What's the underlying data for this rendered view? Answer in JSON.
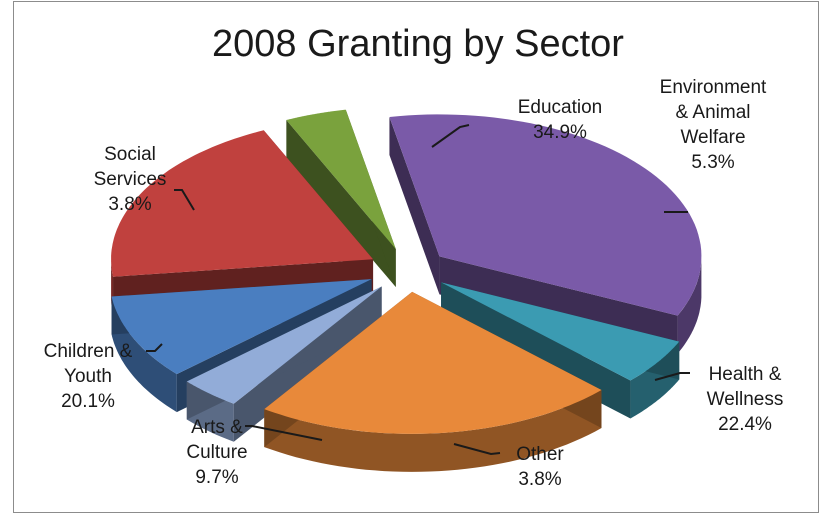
{
  "chart_data": {
    "type": "pie",
    "title": "2008 Granting by Sector",
    "unit": "%",
    "slices": [
      {
        "label": "Education",
        "value": 34.9,
        "value_label": "34.9%",
        "color": "#7a5aa8",
        "label_lines": [
          "Education",
          "34.9%"
        ]
      },
      {
        "label": "Environment & Animal Welfare",
        "value": 5.3,
        "value_label": "5.3%",
        "color": "#3b9bb2",
        "label_lines": [
          "Environment",
          "& Animal",
          "Welfare",
          "5.3%"
        ]
      },
      {
        "label": "Health & Wellness",
        "value": 22.4,
        "value_label": "22.4%",
        "color": "#e8893a",
        "label_lines": [
          "Health &",
          "Wellness",
          "22.4%"
        ]
      },
      {
        "label": "Other",
        "value": 3.8,
        "value_label": "3.8%",
        "color": "#92acd8",
        "label_lines": [
          "Other",
          "3.8%"
        ]
      },
      {
        "label": "Arts & Culture",
        "value": 9.7,
        "value_label": "9.7%",
        "color": "#4a7ec0",
        "label_lines": [
          "Arts &",
          "Culture",
          "9.7%"
        ]
      },
      {
        "label": "Children & Youth",
        "value": 20.1,
        "value_label": "20.1%",
        "color": "#c0413e",
        "label_lines": [
          "Children &",
          "Youth",
          "20.1%"
        ]
      },
      {
        "label": "Social Services",
        "value": 3.8,
        "value_label": "3.8%",
        "color": "#7aa23d",
        "label_lines": [
          "Social",
          "Services",
          "3.8%"
        ]
      }
    ],
    "style": "3D exploded pie"
  }
}
